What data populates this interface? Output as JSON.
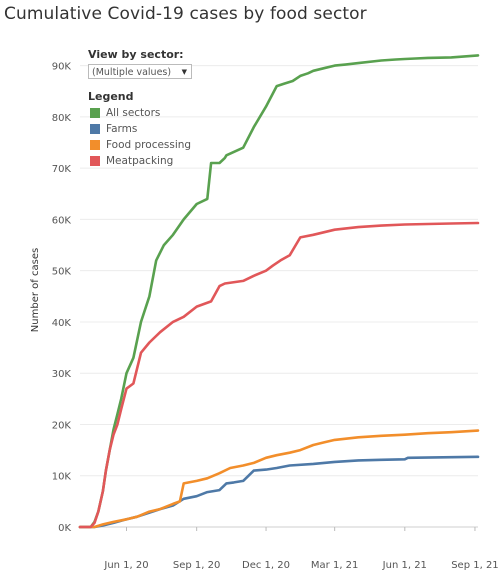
{
  "title": "Cumulative Covid-19 cases by food sector",
  "filter": {
    "label": "View by sector:",
    "value": "(Multiple values)"
  },
  "legend": {
    "title": "Legend",
    "items": [
      {
        "label": "All sectors",
        "color": "#59a14f"
      },
      {
        "label": "Farms",
        "color": "#4e79a7"
      },
      {
        "label": "Food processing",
        "color": "#f28e2b"
      },
      {
        "label": "Meatpacking",
        "color": "#e15759"
      }
    ]
  },
  "chart_data": {
    "type": "line",
    "title": "Cumulative Covid-19 cases by food sector",
    "ylabel": "Number of cases",
    "xlabel": "",
    "ylim": [
      0,
      95000
    ],
    "xlim": [
      "2020-04-01",
      "2021-09-05"
    ],
    "y_ticks": [
      0,
      10000,
      20000,
      30000,
      40000,
      50000,
      60000,
      70000,
      80000,
      90000
    ],
    "y_tick_labels": [
      "0K",
      "10K",
      "20K",
      "30K",
      "40K",
      "50K",
      "60K",
      "70K",
      "80K",
      "90K"
    ],
    "x_ticks": [
      "2020-06-01",
      "2020-09-01",
      "2020-12-01",
      "2021-03-01",
      "2021-06-01",
      "2021-09-01"
    ],
    "x_tick_labels": [
      "Jun 1, 20",
      "Sep 1, 20",
      "Dec 1, 20",
      "Mar 1, 21",
      "Jun 1, 21",
      "Sep 1, 21"
    ],
    "grid": true,
    "legend_position": "top-left",
    "series": [
      {
        "name": "All sectors",
        "color": "#59a14f",
        "x": [
          "2020-04-01",
          "2020-04-15",
          "2020-04-20",
          "2020-04-25",
          "2020-05-01",
          "2020-05-05",
          "2020-05-10",
          "2020-05-15",
          "2020-05-20",
          "2020-05-25",
          "2020-06-01",
          "2020-06-10",
          "2020-06-20",
          "2020-07-01",
          "2020-07-10",
          "2020-07-20",
          "2020-08-01",
          "2020-08-15",
          "2020-09-01",
          "2020-09-15",
          "2020-09-20",
          "2020-10-01",
          "2020-10-08",
          "2020-10-10",
          "2020-11-01",
          "2020-11-15",
          "2020-12-01",
          "2020-12-15",
          "2020-12-25",
          "2021-01-05",
          "2021-01-15",
          "2021-01-25",
          "2021-02-01",
          "2021-02-15",
          "2021-03-01",
          "2021-03-15",
          "2021-04-01",
          "2021-05-01",
          "2021-05-20",
          "2021-06-01",
          "2021-06-15",
          "2021-07-01",
          "2021-08-01",
          "2021-09-05"
        ],
        "values": [
          0,
          0,
          1000,
          3000,
          7000,
          11000,
          15000,
          19000,
          22000,
          25000,
          30000,
          33000,
          40000,
          45000,
          52000,
          55000,
          57000,
          60000,
          63000,
          64000,
          71000,
          71000,
          72000,
          72500,
          74000,
          78000,
          82000,
          86000,
          86500,
          87000,
          88000,
          88500,
          89000,
          89500,
          90000,
          90200,
          90500,
          91000,
          91200,
          91300,
          91400,
          91500,
          91600,
          92000
        ]
      },
      {
        "name": "Farms",
        "color": "#4e79a7",
        "x": [
          "2020-04-01",
          "2020-04-20",
          "2020-05-01",
          "2020-05-15",
          "2020-06-01",
          "2020-06-15",
          "2020-07-01",
          "2020-07-15",
          "2020-08-01",
          "2020-08-15",
          "2020-09-01",
          "2020-09-15",
          "2020-10-01",
          "2020-10-10",
          "2020-10-20",
          "2020-11-01",
          "2020-11-15",
          "2020-12-01",
          "2020-12-15",
          "2021-01-01",
          "2021-02-01",
          "2021-03-01",
          "2021-04-01",
          "2021-05-01",
          "2021-06-01",
          "2021-06-05",
          "2021-09-05"
        ],
        "values": [
          0,
          0,
          300,
          800,
          1500,
          2000,
          2800,
          3500,
          4200,
          5500,
          6000,
          6800,
          7200,
          8500,
          8700,
          9000,
          11000,
          11200,
          11500,
          12000,
          12300,
          12700,
          13000,
          13100,
          13200,
          13500,
          13700
        ]
      },
      {
        "name": "Food processing",
        "color": "#f28e2b",
        "x": [
          "2020-04-01",
          "2020-04-20",
          "2020-05-01",
          "2020-05-15",
          "2020-06-01",
          "2020-06-15",
          "2020-07-01",
          "2020-07-15",
          "2020-08-01",
          "2020-08-10",
          "2020-08-15",
          "2020-09-01",
          "2020-09-15",
          "2020-10-01",
          "2020-10-15",
          "2020-11-01",
          "2020-11-15",
          "2020-12-01",
          "2020-12-15",
          "2021-01-01",
          "2021-01-15",
          "2021-02-01",
          "2021-02-15",
          "2021-03-01",
          "2021-04-01",
          "2021-05-01",
          "2021-06-01",
          "2021-07-01",
          "2021-08-01",
          "2021-09-05"
        ],
        "values": [
          0,
          0,
          500,
          1000,
          1500,
          2000,
          3000,
          3500,
          4500,
          5000,
          8500,
          9000,
          9500,
          10500,
          11500,
          12000,
          12500,
          13500,
          14000,
          14500,
          15000,
          16000,
          16500,
          17000,
          17500,
          17800,
          18000,
          18300,
          18500,
          18800
        ]
      },
      {
        "name": "Meatpacking",
        "color": "#e15759",
        "x": [
          "2020-04-01",
          "2020-04-15",
          "2020-04-20",
          "2020-04-25",
          "2020-05-01",
          "2020-05-05",
          "2020-05-10",
          "2020-05-15",
          "2020-05-20",
          "2020-05-25",
          "2020-06-01",
          "2020-06-10",
          "2020-06-20",
          "2020-07-01",
          "2020-07-15",
          "2020-08-01",
          "2020-08-15",
          "2020-09-01",
          "2020-09-20",
          "2020-10-01",
          "2020-10-08",
          "2020-11-01",
          "2020-11-15",
          "2020-12-01",
          "2020-12-10",
          "2020-12-20",
          "2021-01-01",
          "2021-01-15",
          "2021-02-01",
          "2021-03-01",
          "2021-04-01",
          "2021-05-01",
          "2021-06-01",
          "2021-07-01",
          "2021-08-01",
          "2021-09-05"
        ],
        "values": [
          0,
          0,
          800,
          3000,
          7000,
          11000,
          15000,
          18000,
          20000,
          23000,
          27000,
          28000,
          34000,
          36000,
          38000,
          40000,
          41000,
          43000,
          44000,
          47000,
          47500,
          48000,
          49000,
          50000,
          51000,
          52000,
          53000,
          56500,
          57000,
          58000,
          58500,
          58800,
          59000,
          59100,
          59200,
          59300
        ]
      }
    ]
  }
}
